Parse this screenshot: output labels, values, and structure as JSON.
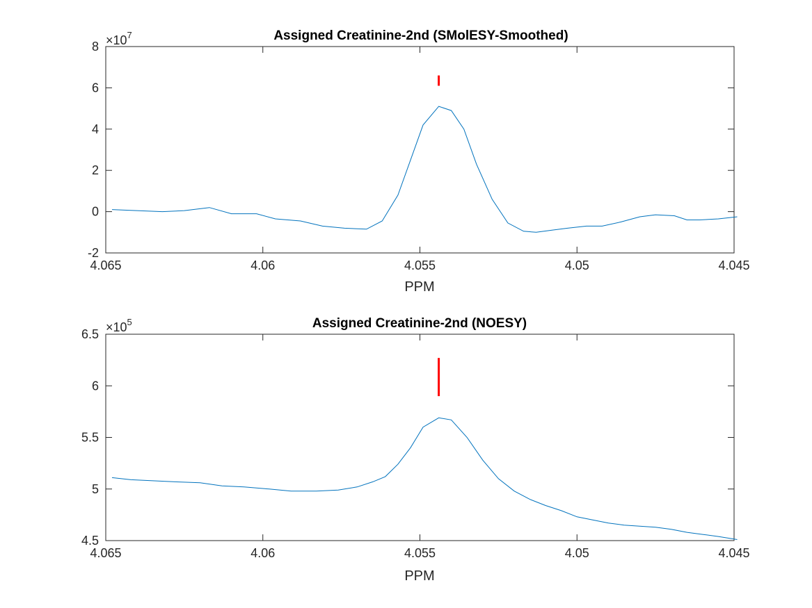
{
  "chart_data": [
    {
      "type": "line",
      "title": "Assigned Creatinine-2nd (SMolESY-Smoothed)",
      "xlabel": "PPM",
      "ylabel": "",
      "x_reversed": true,
      "xlim": [
        4.045,
        4.065
      ],
      "ylim": [
        -2,
        8
      ],
      "y_multiplier_base": "×10",
      "y_multiplier_exp": "7",
      "xticks": [
        4.065,
        4.06,
        4.055,
        4.05,
        4.045
      ],
      "xtick_labels": [
        "4.065",
        "4.06",
        "4.055",
        "4.05",
        "4.045"
      ],
      "yticks": [
        -2,
        0,
        2,
        4,
        6,
        8
      ],
      "ytick_labels": [
        "-2",
        "0",
        "2",
        "4",
        "6",
        "8"
      ],
      "grid": false,
      "line_color": "#0072BD",
      "marker": {
        "x": 4.0544,
        "y_from": 6.1,
        "y_to": 6.6,
        "color": "#FF0000"
      },
      "series": [
        {
          "x": [
            4.0648,
            4.064,
            4.0632,
            4.0625,
            4.0617,
            4.061,
            4.0602,
            4.0596,
            4.0588,
            4.0581,
            4.0574,
            4.0567,
            4.0562,
            4.0557,
            4.0553,
            4.0549,
            4.0544,
            4.054,
            4.0536,
            4.0532,
            4.0527,
            4.0522,
            4.0517,
            4.0513,
            4.0508,
            4.0503,
            4.0497,
            4.0492,
            4.0486,
            4.048,
            4.0475,
            4.0469,
            4.0465,
            4.0461,
            4.0455,
            4.0449,
            4.0452
          ],
          "y": [
            0.1,
            0.05,
            0.0,
            0.05,
            0.2,
            -0.1,
            -0.1,
            -0.35,
            -0.45,
            -0.7,
            -0.8,
            -0.85,
            -0.45,
            0.8,
            2.5,
            4.2,
            5.1,
            4.9,
            4.0,
            2.3,
            0.6,
            -0.55,
            -0.95,
            -1.0,
            -0.9,
            -0.8,
            -0.7,
            -0.7,
            -0.5,
            -0.25,
            -0.15,
            -0.2,
            -0.4,
            -0.4,
            -0.35,
            -0.25,
            -0.3
          ]
        }
      ]
    },
    {
      "type": "line",
      "title": "Assigned Creatinine-2nd (NOESY)",
      "xlabel": "PPM",
      "ylabel": "",
      "x_reversed": true,
      "xlim": [
        4.045,
        4.065
      ],
      "ylim": [
        4.5,
        6.5
      ],
      "y_multiplier_base": "×10",
      "y_multiplier_exp": "5",
      "xticks": [
        4.065,
        4.06,
        4.055,
        4.05,
        4.045
      ],
      "xtick_labels": [
        "4.065",
        "4.06",
        "4.055",
        "4.05",
        "4.045"
      ],
      "yticks": [
        4.5,
        5,
        5.5,
        6,
        6.5
      ],
      "ytick_labels": [
        "4.5",
        "5",
        "5.5",
        "6",
        "6.5"
      ],
      "grid": false,
      "line_color": "#0072BD",
      "marker": {
        "x": 4.0544,
        "y_from": 5.9,
        "y_to": 6.27,
        "color": "#FF0000"
      },
      "series": [
        {
          "x": [
            4.0648,
            4.0642,
            4.0635,
            4.0628,
            4.062,
            4.0613,
            4.0606,
            4.0598,
            4.0591,
            4.0583,
            4.0576,
            4.057,
            4.0565,
            4.0561,
            4.0557,
            4.0553,
            4.0549,
            4.0544,
            4.054,
            4.0535,
            4.053,
            4.0525,
            4.052,
            4.0515,
            4.051,
            4.0505,
            4.05,
            4.0495,
            4.049,
            4.0485,
            4.048,
            4.0475,
            4.047,
            4.0465,
            4.046,
            4.0455,
            4.0449
          ],
          "y": [
            5.11,
            5.09,
            5.08,
            5.07,
            5.06,
            5.03,
            5.02,
            5.0,
            4.98,
            4.98,
            4.99,
            5.02,
            5.07,
            5.12,
            5.24,
            5.4,
            5.6,
            5.69,
            5.67,
            5.5,
            5.28,
            5.1,
            4.98,
            4.9,
            4.84,
            4.79,
            4.73,
            4.7,
            4.67,
            4.65,
            4.64,
            4.63,
            4.61,
            4.58,
            4.56,
            4.54,
            4.51
          ]
        }
      ]
    }
  ]
}
